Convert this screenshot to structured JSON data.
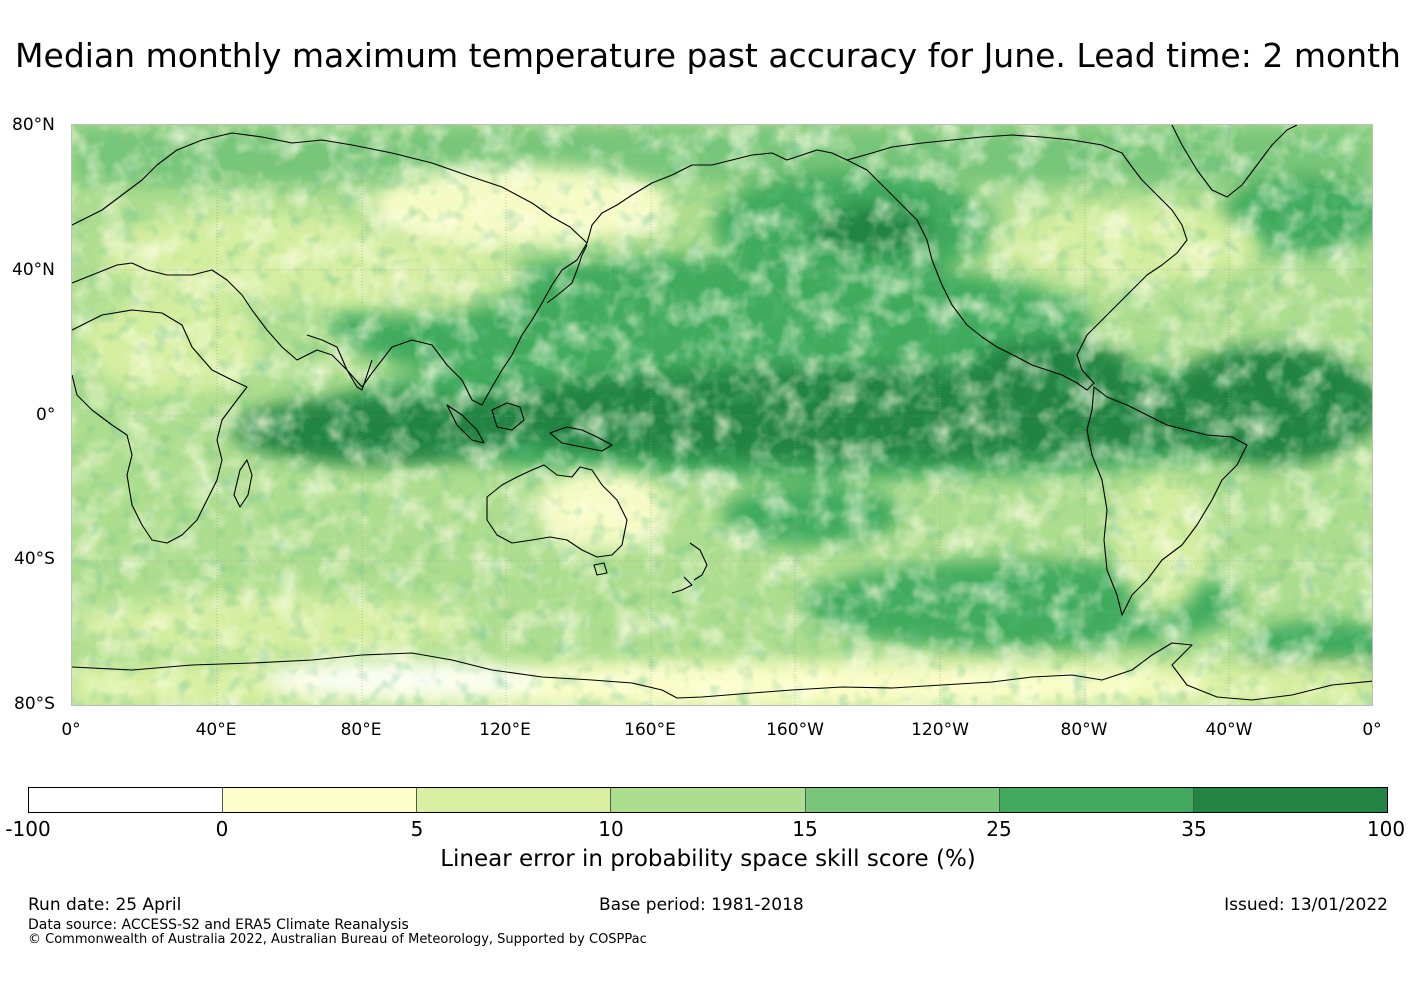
{
  "title": "Median monthly maximum temperature past accuracy for June. Lead time: 2 month",
  "map": {
    "lat_labels": [
      "80°N",
      "40°N",
      "0°",
      "40°S",
      "80°S"
    ],
    "lon_labels": [
      "0°",
      "40°E",
      "80°E",
      "120°E",
      "160°E",
      "160°W",
      "120°W",
      "80°W",
      "40°W",
      "0°"
    ]
  },
  "legend": {
    "ticks": [
      "-100",
      "0",
      "5",
      "10",
      "15",
      "25",
      "35",
      "100"
    ],
    "colors": [
      "#ffffff",
      "#ffffcc",
      "#d9f0a3",
      "#addd8e",
      "#78c679",
      "#41ab5d",
      "#238443"
    ],
    "label": "Linear error in probability space skill score (%)"
  },
  "footer": {
    "run_date": "Run date: 25 April",
    "base_period": "Base period: 1981-2018",
    "issued": "Issued: 13/01/2022",
    "data_source": "Data source: ACCESS-S2 and ERA5 Climate Reanalysis",
    "copyright": "© Commonwealth of Australia 2022, Australian Bureau of Meteorology, Supported by COSPPac"
  }
}
